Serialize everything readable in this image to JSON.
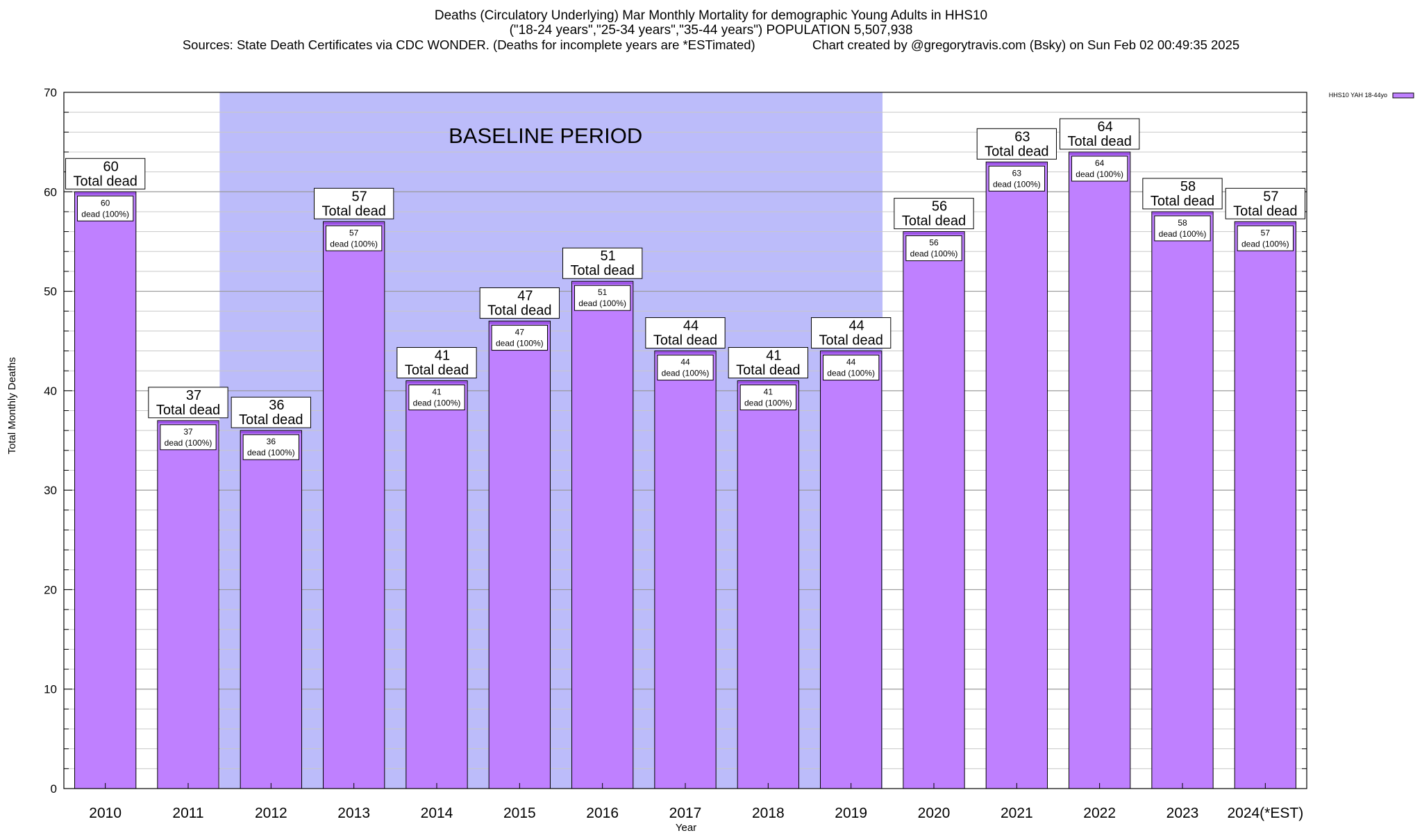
{
  "header": {
    "title_line1": "Deaths (Circulatory Underlying) Mar Monthly Mortality for demographic Young Adults in HHS10",
    "title_line2": "(\"18-24 years\",\"25-34 years\",\"35-44 years\") POPULATION 5,507,938",
    "title_line3": "Sources: State Death Certificates via CDC WONDER. (Deaths for incomplete years are *ESTimated)                Chart created by @gregorytravis.com (Bsky) on Sun Feb 02 00:49:35 2025"
  },
  "colors": {
    "bar_fill": "#bf80ff",
    "bar_cap": "#9a4fe6",
    "baseline_shade": "#bcbcfa",
    "grid": "#c8c8c8"
  },
  "chart_data": {
    "type": "bar",
    "title": "Deaths (Circulatory Underlying) Mar Monthly Mortality for demographic Young Adults in HHS10",
    "xlabel": "Year",
    "ylabel": "Total Monthly Deaths",
    "ylim": [
      0,
      70
    ],
    "yticks": [
      0,
      10,
      20,
      30,
      40,
      50,
      60,
      70
    ],
    "grid": true,
    "legend": {
      "label": "HHS10 YAH 18-44yo",
      "placement": "top-right"
    },
    "categories": [
      "2010",
      "2011",
      "2012",
      "2013",
      "2014",
      "2015",
      "2016",
      "2017",
      "2018",
      "2019",
      "2020",
      "2021",
      "2022",
      "2023",
      "2024(*EST)"
    ],
    "series": [
      {
        "name": "HHS10 YAH 18-44yo",
        "values": [
          60,
          37,
          36,
          57,
          41,
          47,
          51,
          44,
          41,
          44,
          56,
          63,
          64,
          58,
          57
        ]
      }
    ],
    "total_label_suffix": "Total dead",
    "inner_label_suffix": "dead (100%)",
    "baseline": {
      "label": "BASELINE PERIOD",
      "start": "2012",
      "end": "2019"
    }
  }
}
